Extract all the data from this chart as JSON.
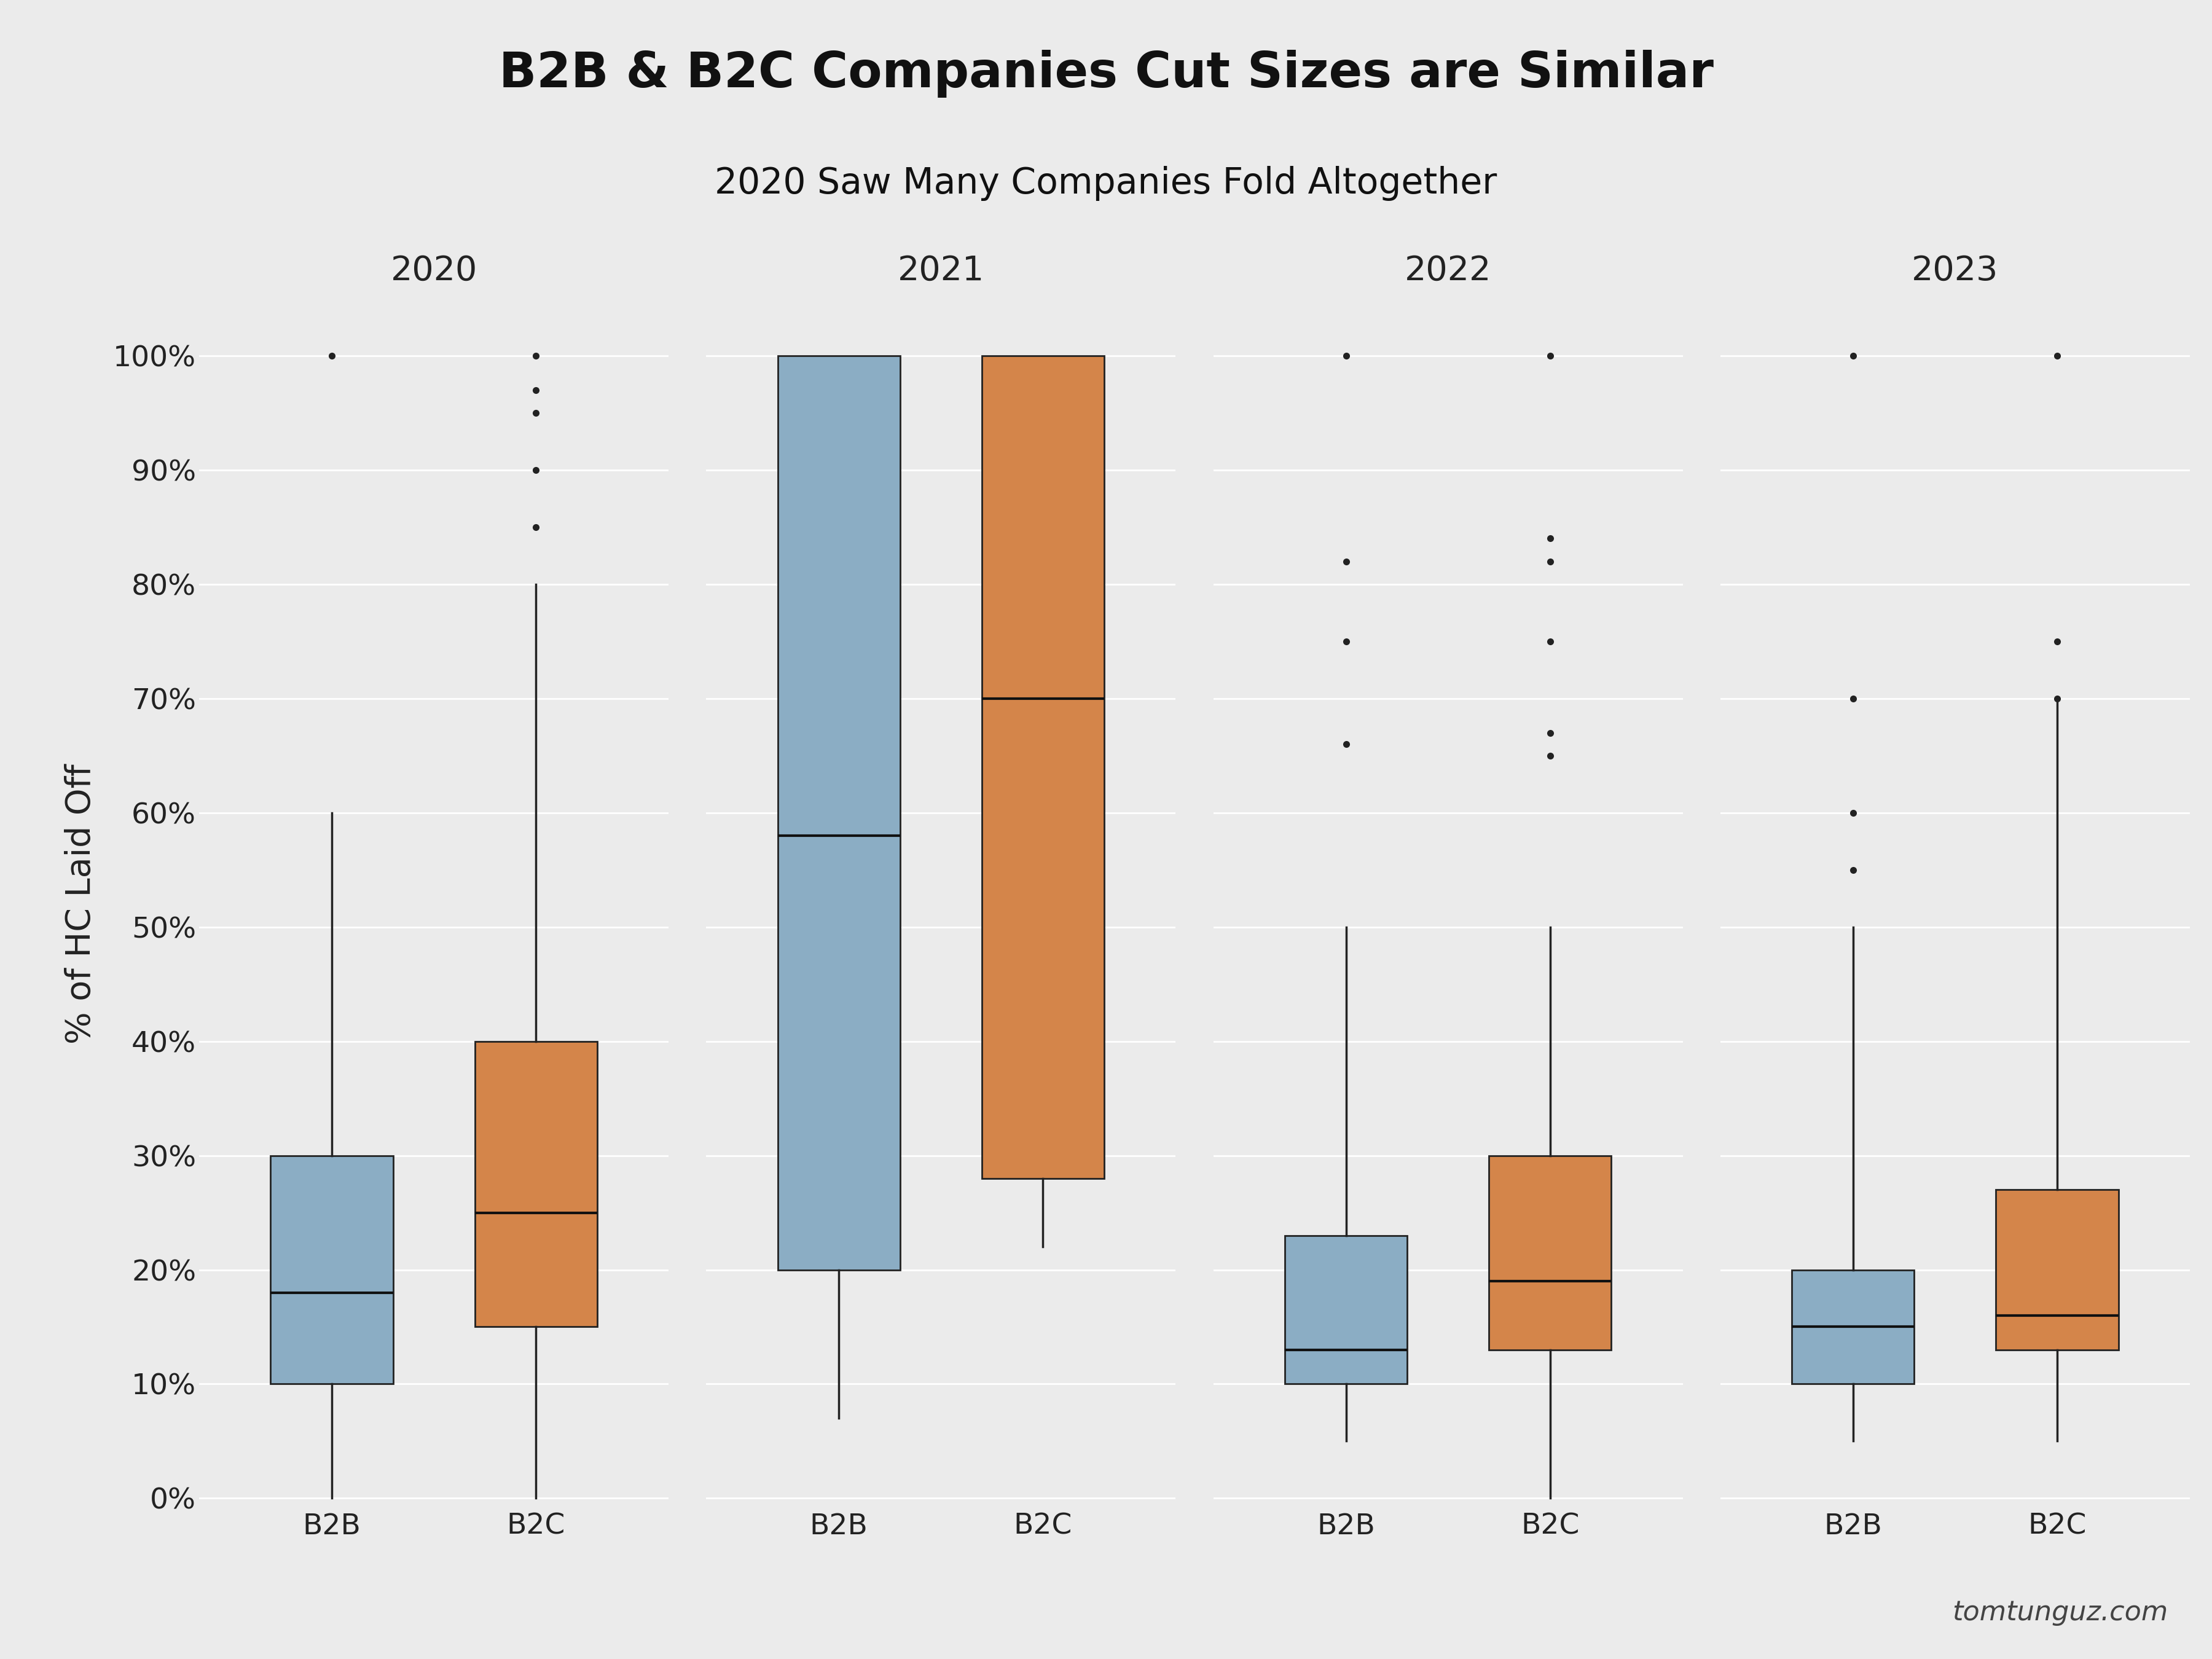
{
  "title": "B2B & B2C Companies Cut Sizes are Similar",
  "subtitle": "2020 Saw Many Companies Fold Altogether",
  "ylabel": "% of HC Laid Off",
  "watermark": "tomtunguz.com",
  "years": [
    "2020",
    "2021",
    "2022",
    "2023"
  ],
  "categories": [
    "B2B",
    "B2C"
  ],
  "b2b_color": "#8badc4",
  "b2c_color": "#d4854a",
  "background_color": "#ebebeb",
  "box_data": {
    "2020": {
      "B2B": {
        "whislo": 0.0,
        "q1": 0.1,
        "med": 0.18,
        "q3": 0.3,
        "whishi": 0.6,
        "fliers": [
          1.0
        ]
      },
      "B2C": {
        "whislo": 0.0,
        "q1": 0.15,
        "med": 0.25,
        "q3": 0.4,
        "whishi": 0.8,
        "fliers": [
          0.85,
          0.9,
          0.95,
          0.97,
          1.0
        ]
      }
    },
    "2021": {
      "B2B": {
        "whislo": 0.07,
        "q1": 0.2,
        "med": 0.58,
        "q3": 1.0,
        "whishi": 1.0,
        "fliers": []
      },
      "B2C": {
        "whislo": 0.22,
        "q1": 0.28,
        "med": 0.7,
        "q3": 1.0,
        "whishi": 1.0,
        "fliers": []
      }
    },
    "2022": {
      "B2B": {
        "whislo": 0.05,
        "q1": 0.1,
        "med": 0.13,
        "q3": 0.23,
        "whishi": 0.5,
        "fliers": [
          0.66,
          0.75,
          0.82,
          1.0
        ]
      },
      "B2C": {
        "whislo": 0.0,
        "q1": 0.13,
        "med": 0.19,
        "q3": 0.3,
        "whishi": 0.5,
        "fliers": [
          0.65,
          0.67,
          0.75,
          0.82,
          0.84,
          1.0
        ]
      }
    },
    "2023": {
      "B2B": {
        "whislo": 0.05,
        "q1": 0.1,
        "med": 0.15,
        "q3": 0.2,
        "whishi": 0.5,
        "fliers": [
          0.55,
          0.6,
          0.7,
          1.0
        ]
      },
      "B2C": {
        "whislo": 0.05,
        "q1": 0.13,
        "med": 0.16,
        "q3": 0.27,
        "whishi": 0.7,
        "fliers": [
          0.7,
          0.75,
          1.0
        ]
      }
    }
  },
  "ylim": [
    -0.01,
    1.05
  ],
  "yticks": [
    0.0,
    0.1,
    0.2,
    0.3,
    0.4,
    0.5,
    0.6,
    0.7,
    0.8,
    0.9,
    1.0
  ],
  "ytick_labels": [
    "0%",
    "10%",
    "20%",
    "30%",
    "40%",
    "50%",
    "60%",
    "70%",
    "80%",
    "90%",
    "100%"
  ],
  "title_fontsize": 58,
  "subtitle_fontsize": 42,
  "axis_label_fontsize": 40,
  "tick_fontsize": 34,
  "year_label_fontsize": 40,
  "watermark_fontsize": 32
}
